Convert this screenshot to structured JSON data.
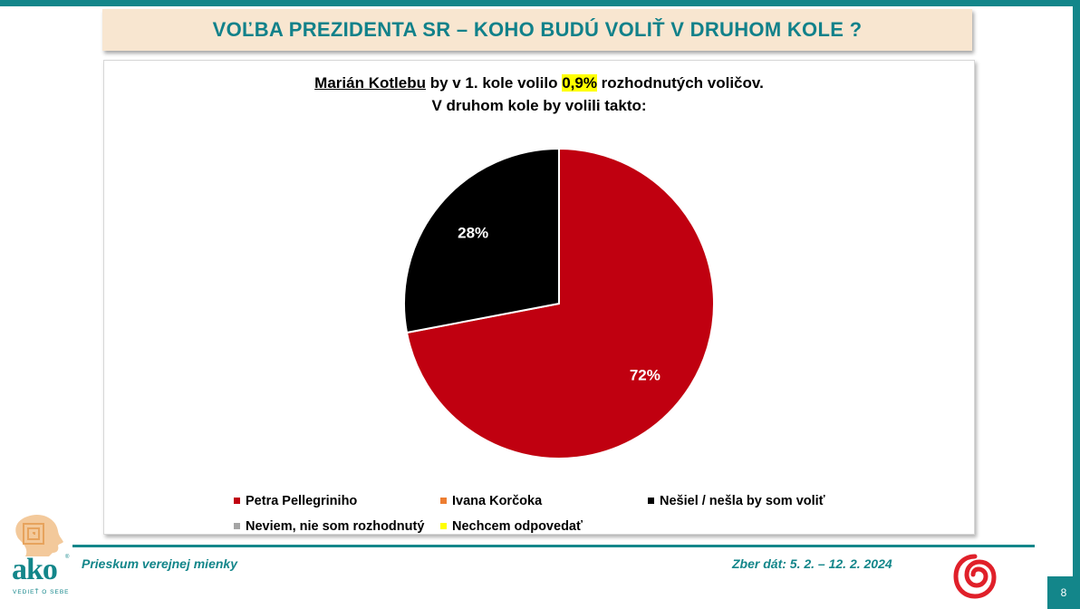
{
  "title": "VOĽBA PREZIDENTA SR – KOHO BUDÚ VOLIŤ V DRUHOM KOLE ?",
  "subtitle": {
    "name": "Marián Kotlebu",
    "part1": " by v 1. kole volilo ",
    "highlight": "0,9%",
    "part2": " rozhodnutých voličov.",
    "line2": "V druhom kole by volili takto:"
  },
  "chart_data": {
    "type": "pie",
    "categories": [
      "Petra Pellegriniho",
      "Ivana Korčoka",
      "Nešiel / nešla by som voliť",
      "Neviem, nie som rozhodnutý",
      "Nechcem odpovedať"
    ],
    "values": [
      72,
      0,
      28,
      0,
      0
    ],
    "labels": [
      "72%",
      "",
      "28%",
      "",
      ""
    ],
    "colors": [
      "#c00010",
      "#ed7d31",
      "#000000",
      "#a5a5a5",
      "#ffff00"
    ],
    "legend_position": "bottom"
  },
  "footer": {
    "left": "Prieskum verejnej mienky",
    "right": "Zber dát: 5. 2. – 12. 2. 2024",
    "page": "8"
  },
  "logo": {
    "name": "ako",
    "tagline": "VEDIEŤ O SEBE",
    "reg": "®"
  },
  "colors": {
    "teal": "#13868a",
    "title_band": "#f8e6d0",
    "highlight": "#ffff00"
  }
}
